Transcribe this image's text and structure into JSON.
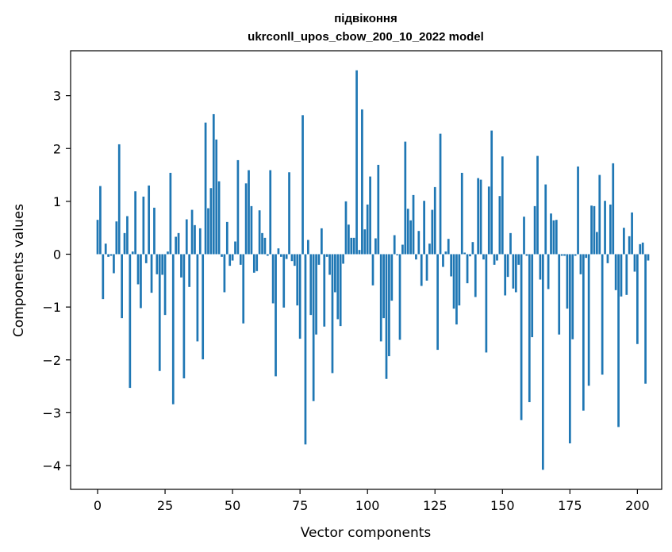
{
  "chart_data": {
    "type": "bar",
    "title_line1": "підвіконня",
    "title_line2": "ukrconll_upos_cbow_200_10_2022 model",
    "xlabel": "Vector components",
    "ylabel": "Components values",
    "xlim": [
      -10,
      209
    ],
    "ylim": [
      -4.45,
      3.85
    ],
    "xticks": [
      0,
      25,
      50,
      75,
      100,
      125,
      150,
      175,
      200
    ],
    "xtick_labels": [
      "0",
      "25",
      "50",
      "75",
      "100",
      "125",
      "150",
      "175",
      "200"
    ],
    "yticks": [
      -4,
      -3,
      -2,
      -1,
      0,
      1,
      2,
      3
    ],
    "ytick_labels": [
      "−4",
      "−3",
      "−2",
      "−1",
      "0",
      "1",
      "2",
      "3"
    ],
    "bar_color": "#1f77b4",
    "values": [
      0.65,
      1.29,
      -0.85,
      0.2,
      -0.05,
      -0.03,
      -0.36,
      0.62,
      2.08,
      -1.21,
      0.4,
      0.72,
      -2.53,
      0.05,
      1.19,
      -0.57,
      -1.02,
      1.09,
      -0.17,
      1.3,
      -0.73,
      0.88,
      -0.38,
      -2.21,
      -0.39,
      -1.15,
      0.05,
      1.54,
      -2.84,
      0.33,
      0.4,
      -0.44,
      -2.35,
      0.66,
      -0.62,
      0.84,
      0.55,
      -1.65,
      0.49,
      -1.99,
      2.49,
      0.87,
      1.25,
      2.65,
      2.17,
      1.38,
      -0.05,
      -0.72,
      0.61,
      -0.22,
      -0.12,
      0.24,
      1.78,
      -0.2,
      -1.31,
      1.34,
      1.59,
      0.91,
      -0.35,
      -0.32,
      0.83,
      0.4,
      0.31,
      -0.03,
      1.59,
      -0.93,
      -2.31,
      0.11,
      -0.05,
      -1.01,
      -0.09,
      1.55,
      -0.13,
      -0.22,
      -0.97,
      -1.6,
      2.63,
      -3.6,
      0.27,
      -1.15,
      -2.78,
      -1.52,
      -0.2,
      0.49,
      -1.37,
      -0.05,
      -0.39,
      -2.25,
      -0.72,
      -1.23,
      -1.36,
      -0.18,
      1.0,
      0.56,
      0.31,
      0.31,
      3.48,
      0.08,
      2.74,
      0.47,
      0.94,
      1.47,
      -0.59,
      0.3,
      1.69,
      -1.65,
      -1.21,
      -2.36,
      -1.93,
      -0.88,
      0.36,
      -0.02,
      -1.62,
      0.18,
      2.13,
      0.86,
      0.64,
      1.12,
      -0.1,
      0.44,
      -0.6,
      1.01,
      -0.5,
      0.2,
      0.84,
      1.27,
      -1.81,
      2.28,
      -0.24,
      0.05,
      0.29,
      -0.42,
      -1.03,
      -1.33,
      -0.97,
      1.54,
      0.03,
      -0.55,
      -0.04,
      0.23,
      -0.81,
      1.44,
      1.41,
      -0.1,
      -1.86,
      1.28,
      2.34,
      -0.2,
      -0.12,
      1.1,
      1.85,
      -0.78,
      -0.43,
      0.4,
      -0.65,
      -0.72,
      -0.2,
      -3.14,
      0.71,
      -0.03,
      -2.8,
      -1.57,
      0.91,
      1.86,
      -0.48,
      -4.08,
      1.32,
      -0.66,
      0.77,
      0.64,
      0.65,
      -1.52,
      -0.03,
      -0.03,
      -1.03,
      -3.58,
      -1.61,
      -0.03,
      1.66,
      -0.38,
      -2.96,
      -0.07,
      -2.49,
      0.92,
      0.91,
      0.42,
      1.5,
      -2.28,
      1.01,
      -0.17,
      0.94,
      1.72,
      -0.68,
      -3.27,
      -0.8,
      0.5,
      -0.77,
      0.34,
      0.79,
      -0.33,
      -1.7,
      0.19,
      0.22,
      -2.45,
      -0.12
    ]
  }
}
